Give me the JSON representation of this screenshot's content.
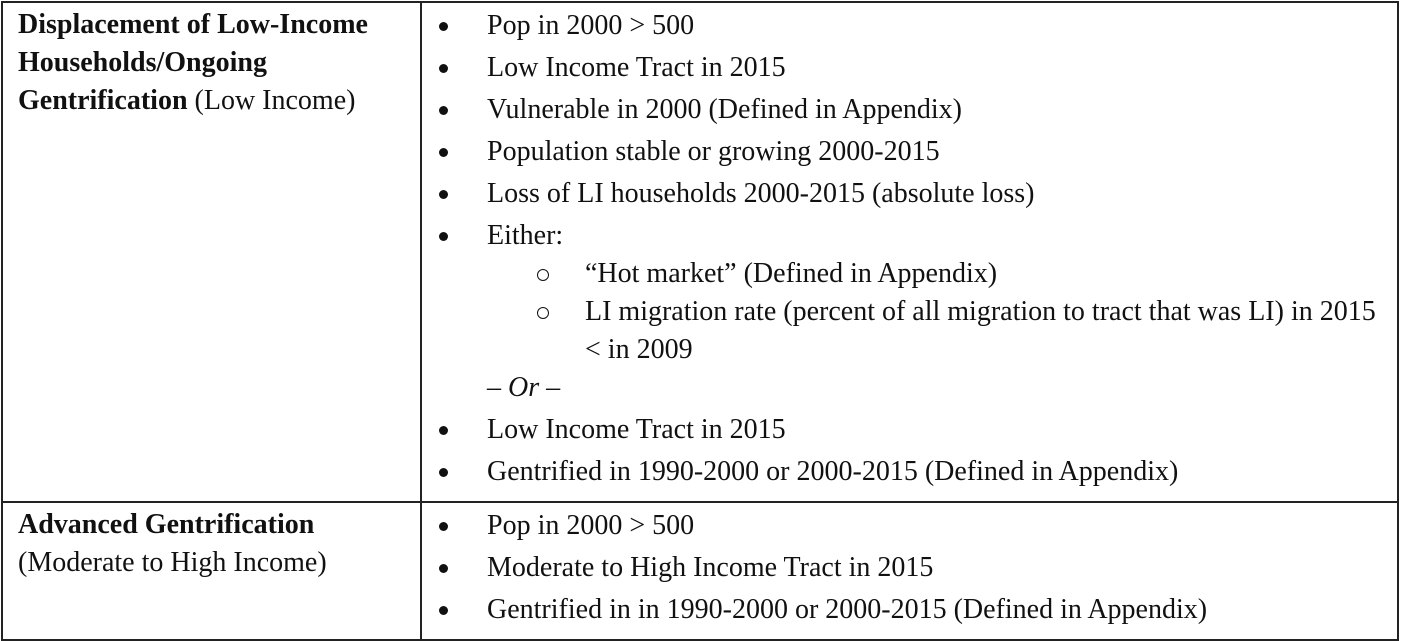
{
  "rows": [
    {
      "category_bold": "Displacement of Low-Income Households/Ongoing Gentrification",
      "category_rest": " (Low Income)",
      "criteria_before": [
        "Pop in 2000 > 500",
        "Low Income Tract in 2015",
        "Vulnerable in 2000 (Defined in Appendix)",
        "Population stable or growing 2000-2015",
        "Loss of LI households 2000-2015 (absolute loss)",
        "Either:"
      ],
      "sub_criteria": [
        "“Hot market” (Defined in Appendix)",
        "LI migration rate (percent of all migration to tract that was LI) in 2015 < in 2009"
      ],
      "or_text": "– Or –",
      "criteria_after": [
        "Low Income Tract in 2015",
        "Gentrified in 1990-2000 or 2000-2015 (Defined in Appendix)"
      ]
    },
    {
      "category_bold": "Advanced Gentrification",
      "category_rest": " (Moderate to High Income)",
      "criteria": [
        "Pop in 2000 > 500",
        "Moderate to High Income Tract in 2015",
        "Gentrified in in 1990-2000 or  2000-2015 (Defined in Appendix)"
      ]
    }
  ]
}
